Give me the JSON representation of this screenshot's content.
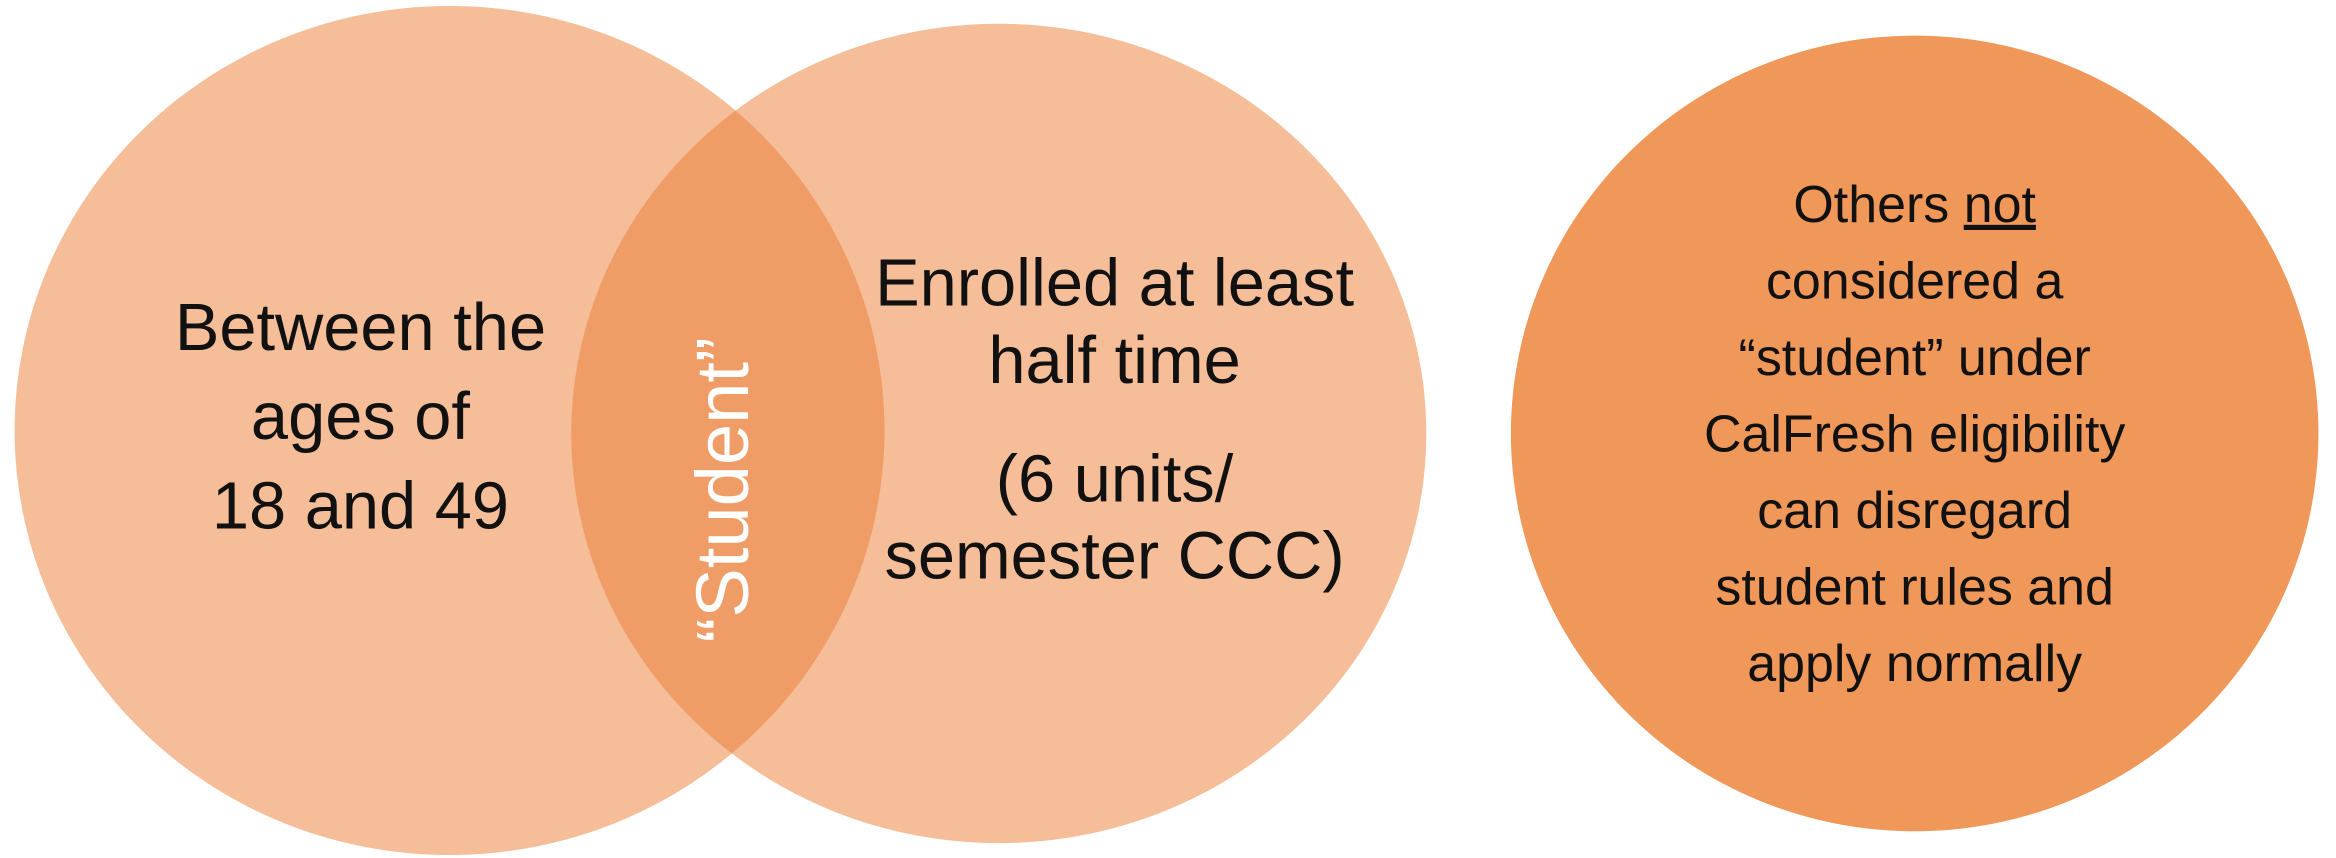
{
  "left": {
    "lines": [
      "Between the",
      "ages of",
      "18 and 49"
    ]
  },
  "center": {
    "label": "“Student”"
  },
  "middle": {
    "lines": [
      "Enrolled at least",
      "half time"
    ],
    "note_lines": [
      "(6 units/",
      "semester CCC)"
    ]
  },
  "right": {
    "first_line": {
      "text": "Others",
      "underlined": "not"
    },
    "lines": [
      "considered a",
      "“student” under",
      "CalFresh eligibility",
      "can disregard",
      "student rules and",
      "apply normally"
    ]
  }
}
